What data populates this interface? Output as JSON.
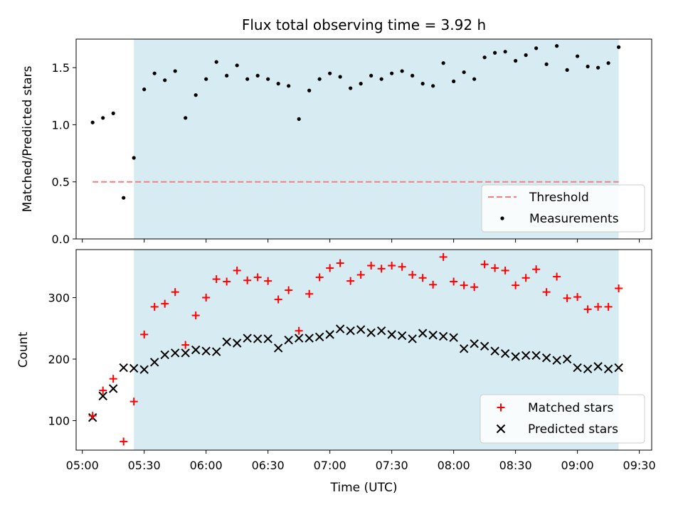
{
  "chart_data": [
    {
      "type": "scatter",
      "title": "Flux total observing time = 3.92 h",
      "xlabel": "",
      "ylabel": "Matched/Predicted stars",
      "ylim": [
        0,
        1.75
      ],
      "yticks": [
        "0.0",
        "0.5",
        "1.0",
        "1.5"
      ],
      "grid": false,
      "legend_position": "bottom-right",
      "shaded_region": {
        "start": "05:25",
        "end": "09:20",
        "color": "#add8e6"
      },
      "threshold": {
        "name": "Threshold",
        "value": 0.5,
        "x_start": "05:05",
        "x_end": "09:20",
        "color": "#f08080",
        "style": "dashed"
      },
      "series": [
        {
          "name": "Measurements",
          "marker": "dot",
          "color": "#000000",
          "x": [
            "05:05",
            "05:10",
            "05:15",
            "05:20",
            "05:25",
            "05:30",
            "05:35",
            "05:40",
            "05:45",
            "05:50",
            "05:55",
            "06:00",
            "06:05",
            "06:10",
            "06:15",
            "06:20",
            "06:25",
            "06:30",
            "06:35",
            "06:40",
            "06:45",
            "06:50",
            "06:55",
            "07:00",
            "07:05",
            "07:10",
            "07:15",
            "07:20",
            "07:25",
            "07:30",
            "07:35",
            "07:40",
            "07:45",
            "07:50",
            "07:55",
            "08:00",
            "08:05",
            "08:10",
            "08:15",
            "08:20",
            "08:25",
            "08:30",
            "08:35",
            "08:40",
            "08:45",
            "08:50",
            "08:55",
            "09:00",
            "09:05",
            "09:10",
            "09:15",
            "09:20"
          ],
          "y": [
            1.02,
            1.06,
            1.1,
            0.36,
            0.71,
            1.31,
            1.45,
            1.39,
            1.47,
            1.06,
            1.26,
            1.4,
            1.55,
            1.43,
            1.52,
            1.4,
            1.43,
            1.4,
            1.36,
            1.34,
            1.05,
            1.3,
            1.4,
            1.45,
            1.42,
            1.32,
            1.36,
            1.43,
            1.4,
            1.45,
            1.47,
            1.43,
            1.36,
            1.34,
            1.54,
            1.38,
            1.46,
            1.4,
            1.59,
            1.63,
            1.64,
            1.56,
            1.61,
            1.67,
            1.53,
            1.69,
            1.48,
            1.6,
            1.51,
            1.5,
            1.54,
            1.68
          ]
        }
      ]
    },
    {
      "type": "scatter",
      "title": "",
      "xlabel": "Time (UTC)",
      "ylabel": "Count",
      "ylim": [
        52,
        378
      ],
      "yticks": [
        "100",
        "200",
        "300"
      ],
      "xticks": [
        "05:00",
        "05:30",
        "06:00",
        "06:30",
        "07:00",
        "07:30",
        "08:00",
        "08:30",
        "09:00",
        "09:30"
      ],
      "grid": false,
      "legend_position": "bottom-right",
      "shaded_region": {
        "start": "05:25",
        "end": "09:20",
        "color": "#add8e6"
      },
      "series": [
        {
          "name": "Matched stars",
          "marker": "plus",
          "color": "#ff0000",
          "x": [
            "05:05",
            "05:10",
            "05:15",
            "05:20",
            "05:25",
            "05:30",
            "05:35",
            "05:40",
            "05:45",
            "05:50",
            "05:55",
            "06:00",
            "06:05",
            "06:10",
            "06:15",
            "06:20",
            "06:25",
            "06:30",
            "06:35",
            "06:40",
            "06:45",
            "06:50",
            "06:55",
            "07:00",
            "07:05",
            "07:10",
            "07:15",
            "07:20",
            "07:25",
            "07:30",
            "07:35",
            "07:40",
            "07:45",
            "07:50",
            "07:55",
            "08:00",
            "08:05",
            "08:10",
            "08:15",
            "08:20",
            "08:25",
            "08:30",
            "08:35",
            "08:40",
            "08:45",
            "08:50",
            "08:55",
            "09:00",
            "09:05",
            "09:10",
            "09:15",
            "09:20"
          ],
          "y": [
            108,
            149,
            168,
            66,
            131,
            240,
            285,
            290,
            309,
            223,
            271,
            300,
            330,
            326,
            344,
            328,
            333,
            327,
            297,
            312,
            246,
            306,
            333,
            348,
            356,
            327,
            337,
            352,
            347,
            352,
            350,
            337,
            332,
            321,
            366,
            326,
            320,
            317,
            354,
            348,
            344,
            320,
            332,
            346,
            309,
            334,
            299,
            301,
            281,
            285,
            285,
            315
          ]
        },
        {
          "name": "Predicted stars",
          "marker": "x",
          "color": "#000000",
          "x": [
            "05:05",
            "05:10",
            "05:15",
            "05:20",
            "05:25",
            "05:30",
            "05:35",
            "05:40",
            "05:45",
            "05:50",
            "05:55",
            "06:00",
            "06:05",
            "06:10",
            "06:15",
            "06:20",
            "06:25",
            "06:30",
            "06:35",
            "06:40",
            "06:45",
            "06:50",
            "06:55",
            "07:00",
            "07:05",
            "07:10",
            "07:15",
            "07:20",
            "07:25",
            "07:30",
            "07:35",
            "07:40",
            "07:45",
            "07:50",
            "07:55",
            "08:00",
            "08:05",
            "08:10",
            "08:15",
            "08:20",
            "08:25",
            "08:30",
            "08:35",
            "08:40",
            "08:45",
            "08:50",
            "08:55",
            "09:00",
            "09:05",
            "09:10",
            "09:15",
            "09:20"
          ],
          "y": [
            105,
            140,
            152,
            186,
            185,
            183,
            195,
            207,
            210,
            210,
            215,
            213,
            212,
            228,
            226,
            234,
            233,
            233,
            218,
            231,
            234,
            234,
            236,
            240,
            249,
            246,
            248,
            243,
            246,
            240,
            238,
            233,
            242,
            239,
            237,
            235,
            217,
            225,
            221,
            213,
            209,
            204,
            206,
            206,
            202,
            198,
            200,
            186,
            184,
            188,
            184,
            186
          ]
        }
      ]
    }
  ]
}
